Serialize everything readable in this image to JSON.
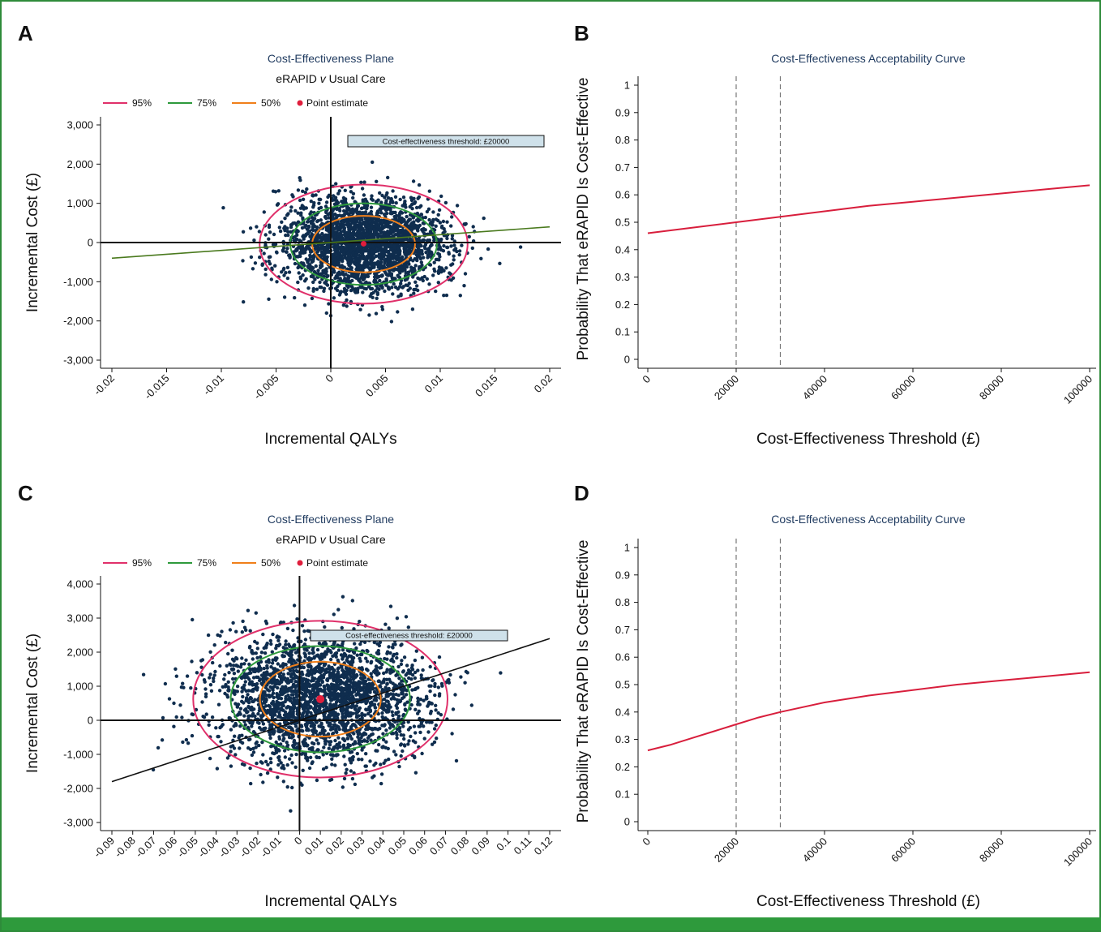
{
  "panels": {
    "A": {
      "letter": "A"
    },
    "B": {
      "letter": "B"
    },
    "C": {
      "letter": "C"
    },
    "D": {
      "letter": "D"
    }
  },
  "colors": {
    "ci95": "#e0306a",
    "ci75": "#2e9a3c",
    "ci50": "#f07f1a",
    "point": "#e01e3c",
    "scatter": "#0f2d4e",
    "wtp_line_A": "#4a7a1e",
    "wtp_line_C": "#111111",
    "ceac": "#d81e3c",
    "frame": "#2e8b3a"
  },
  "chart_data": [
    {
      "panel": "A",
      "type": "scatter",
      "title": "Cost-Effectiveness Plane",
      "subtitle_parts": [
        "eRAPID ",
        "v",
        " Usual Care"
      ],
      "xlabel": "Incremental QALYs",
      "ylabel": "Incremental Cost (£)",
      "xlim": [
        -0.02,
        0.02
      ],
      "ylim": [
        -3000,
        3000
      ],
      "xticks": [
        -0.02,
        -0.015,
        -0.01,
        -0.005,
        0,
        0.005,
        0.01,
        0.015,
        0.02
      ],
      "xtick_labels": [
        "-0.02",
        "-0.015",
        "-0.01",
        "-0.005",
        "0",
        "0.005",
        "0.01",
        "0.015",
        "0.02"
      ],
      "yticks": [
        3000,
        2000,
        1000,
        0,
        -1000,
        -2000,
        -3000
      ],
      "ytick_labels": [
        "3,000",
        "2,000",
        "1,000",
        "0",
        "-1,000",
        "-2,000",
        "-3,000"
      ],
      "legend": [
        {
          "label": "95%",
          "kind": "line",
          "color": "#e0306a"
        },
        {
          "label": "75%",
          "kind": "line",
          "color": "#2e9a3c"
        },
        {
          "label": "50%",
          "kind": "line",
          "color": "#f07f1a"
        },
        {
          "label": "Point estimate",
          "kind": "dot",
          "color": "#e01e3c"
        }
      ],
      "legend_position": "top",
      "point_estimate": {
        "x": 0.003,
        "y": -30
      },
      "ellipses": [
        {
          "level": "95%",
          "cx": 0.003,
          "cy": -40,
          "rx": 0.0095,
          "ry": 1520
        },
        {
          "level": "75%",
          "cx": 0.003,
          "cy": -40,
          "rx": 0.0067,
          "ry": 1040
        },
        {
          "level": "50%",
          "cx": 0.003,
          "cy": -40,
          "rx": 0.0047,
          "ry": 720
        }
      ],
      "cloud": {
        "mean_x": 0.003,
        "mean_y": -40,
        "sd_x": 0.0038,
        "sd_y": 600,
        "n": 2600
      },
      "threshold_label": "Cost-effectiveness threshold: £20000",
      "threshold_line": {
        "x": [
          -0.02,
          0.02
        ],
        "y": [
          -400,
          400
        ]
      }
    },
    {
      "panel": "B",
      "type": "line",
      "title": "Cost-Effectiveness Acceptability Curve",
      "xlabel": "Cost-Effectiveness Threshold (£)",
      "ylabel": "Probability That eRAPID Is Cost-Effective",
      "xlim": [
        0,
        100000
      ],
      "ylim": [
        0,
        1
      ],
      "xticks": [
        0,
        20000,
        40000,
        60000,
        80000,
        100000
      ],
      "xtick_labels": [
        "0",
        "20000",
        "40000",
        "60000",
        "80000",
        "100000"
      ],
      "yticks": [
        0,
        0.1,
        0.2,
        0.3,
        0.4,
        0.5,
        0.6,
        0.7,
        0.8,
        0.9,
        1
      ],
      "ytick_labels": [
        "0",
        "0.1",
        "0.2",
        "0.3",
        "0.4",
        "0.5",
        "0.6",
        "0.7",
        "0.8",
        "0.9",
        "1"
      ],
      "reference_lines_x": [
        20000,
        30000
      ],
      "x": [
        0,
        10000,
        20000,
        30000,
        40000,
        50000,
        60000,
        70000,
        80000,
        90000,
        100000
      ],
      "y": [
        0.46,
        0.48,
        0.5,
        0.52,
        0.54,
        0.56,
        0.575,
        0.59,
        0.605,
        0.62,
        0.635
      ]
    },
    {
      "panel": "C",
      "type": "scatter",
      "title": "Cost-Effectiveness Plane",
      "subtitle_parts": [
        "eRAPID ",
        "v",
        " Usual Care"
      ],
      "xlabel": "Incremental QALYs",
      "ylabel": "Incremental Cost (£)",
      "xlim": [
        -0.09,
        0.12
      ],
      "ylim": [
        -3000,
        4000
      ],
      "xticks": [
        -0.09,
        -0.08,
        -0.07,
        -0.06,
        -0.05,
        -0.04,
        -0.03,
        -0.02,
        -0.01,
        0,
        0.01,
        0.02,
        0.03,
        0.04,
        0.05,
        0.06,
        0.07,
        0.08,
        0.09,
        0.1,
        0.11,
        0.12
      ],
      "xtick_labels": [
        "-0.09",
        "-0.08",
        "-0.07",
        "-0.06",
        "-0.05",
        "-0.04",
        "-0.03",
        "-0.02",
        "-0.01",
        "0",
        "0.01",
        "0.02",
        "0.03",
        "0.04",
        "0.05",
        "0.06",
        "0.07",
        "0.08",
        "0.09",
        "0.1",
        "0.11",
        "0.12"
      ],
      "yticks": [
        4000,
        3000,
        2000,
        1000,
        0,
        -1000,
        -2000,
        -3000
      ],
      "ytick_labels": [
        "4,000",
        "3,000",
        "2,000",
        "1,000",
        "0",
        "-1,000",
        "-2,000",
        "-3,000"
      ],
      "legend": [
        {
          "label": "95%",
          "kind": "line",
          "color": "#e0306a"
        },
        {
          "label": "75%",
          "kind": "line",
          "color": "#2e9a3c"
        },
        {
          "label": "50%",
          "kind": "line",
          "color": "#f07f1a"
        },
        {
          "label": "Point estimate",
          "kind": "dot",
          "color": "#e01e3c"
        }
      ],
      "legend_position": "top",
      "point_estimate": {
        "x": 0.01,
        "y": 620
      },
      "ellipses": [
        {
          "level": "95%",
          "cx": 0.01,
          "cy": 620,
          "rx": 0.061,
          "ry": 2300
        },
        {
          "level": "75%",
          "cx": 0.01,
          "cy": 620,
          "rx": 0.043,
          "ry": 1560
        },
        {
          "level": "50%",
          "cx": 0.01,
          "cy": 620,
          "rx": 0.029,
          "ry": 1100
        },
        {
          "level": "_fill",
          "cx": 0.01,
          "cy": 620,
          "rx": 0.02,
          "ry": 800
        }
      ],
      "cloud": {
        "mean_x": 0.01,
        "mean_y": 620,
        "sd_x": 0.025,
        "sd_y": 930,
        "n": 2600
      },
      "threshold_label": "Cost-effectiveness threshold: £20000",
      "threshold_line": {
        "x": [
          -0.09,
          0.12
        ],
        "y": [
          -1800,
          2400
        ]
      }
    },
    {
      "panel": "D",
      "type": "line",
      "title": "Cost-Effectiveness Acceptability Curve",
      "xlabel": "Cost-Effectiveness Threshold (£)",
      "ylabel": "Probability That eRAPID Is Cost-Effective",
      "xlim": [
        0,
        100000
      ],
      "ylim": [
        0,
        1
      ],
      "xticks": [
        0,
        20000,
        40000,
        60000,
        80000,
        100000
      ],
      "xtick_labels": [
        "0",
        "20000",
        "40000",
        "60000",
        "80000",
        "100000"
      ],
      "yticks": [
        0,
        0.1,
        0.2,
        0.3,
        0.4,
        0.5,
        0.6,
        0.7,
        0.8,
        0.9,
        1
      ],
      "ytick_labels": [
        "0",
        "0.1",
        "0.2",
        "0.3",
        "0.4",
        "0.5",
        "0.6",
        "0.7",
        "0.8",
        "0.9",
        "1"
      ],
      "reference_lines_x": [
        20000,
        30000
      ],
      "x": [
        0,
        5000,
        10000,
        15000,
        20000,
        25000,
        30000,
        40000,
        50000,
        60000,
        70000,
        80000,
        90000,
        100000
      ],
      "y": [
        0.26,
        0.28,
        0.305,
        0.33,
        0.355,
        0.38,
        0.4,
        0.435,
        0.46,
        0.48,
        0.5,
        0.515,
        0.53,
        0.545
      ]
    }
  ]
}
